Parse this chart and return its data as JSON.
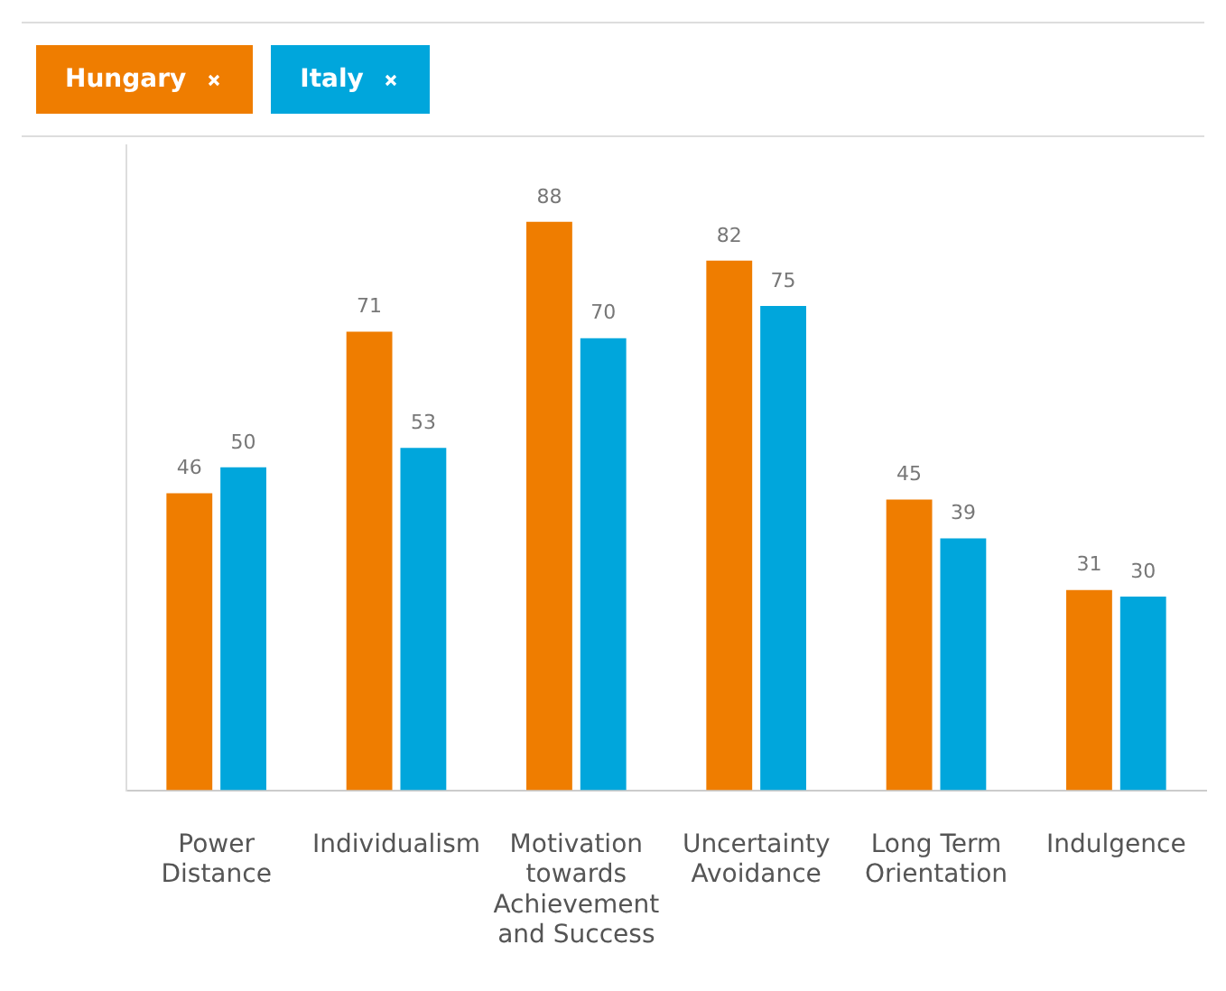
{
  "chart_data": {
    "type": "bar",
    "categories": [
      "Power Distance",
      "Individualism",
      "Motivation towards Achievement and Success",
      "Uncertainty Avoidance",
      "Long Term Orientation",
      "Indulgence"
    ],
    "series": [
      {
        "name": "Hungary",
        "color": "#ef7d00",
        "values": [
          46,
          71,
          88,
          82,
          45,
          31
        ]
      },
      {
        "name": "Italy",
        "color": "#00a6dc",
        "values": [
          50,
          53,
          70,
          75,
          39,
          30
        ]
      }
    ],
    "ylim": [
      0,
      100
    ],
    "tick_labels": "x",
    "grid": false,
    "legend": "top left",
    "data_labels": true
  }
}
